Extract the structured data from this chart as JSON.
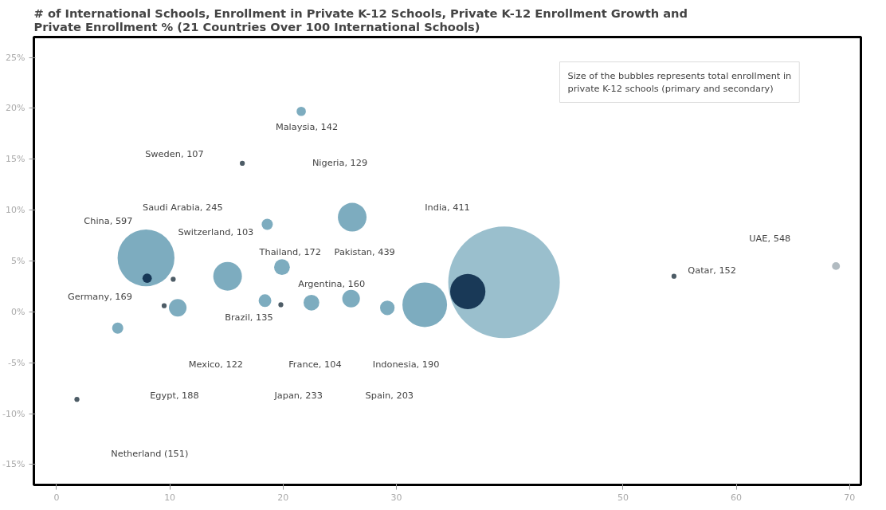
{
  "chart_data": {
    "type": "bubble",
    "title": "# of International Schools, Enrollment in Private K-12 Schools, Private K-12 Enrollment Growth and Private Enrollment % (21 Countries Over 100 International Schools)",
    "legend_title": "Size of the bubbles represents total enrollment in private K-12 schools (primary and secondary)",
    "grid": false,
    "x": [
      21.6,
      16.4,
      26.1,
      18.6,
      7.9,
      15.1,
      19.9,
      8.0,
      10.3,
      39.5,
      36.3,
      18.4,
      19.8,
      22.5,
      26.0,
      29.2,
      32.5,
      10.7,
      9.5,
      5.4,
      1.8,
      54.5,
      68.8
    ],
    "values": [
      19.7,
      14.6,
      9.3,
      8.6,
      5.3,
      3.5,
      4.4,
      3.3,
      3.2,
      2.9,
      2.0,
      1.1,
      0.7,
      0.9,
      1.3,
      0.4,
      0.7,
      0.4,
      0.6,
      -1.6,
      -8.6,
      3.5,
      4.5
    ],
    "sizes": [
      0.007,
      0.002,
      0.066,
      0.01,
      0.26,
      0.066,
      0.02,
      0.007,
      0.002,
      1,
      0.1,
      0.013,
      0.002,
      0.02,
      0.025,
      0.017,
      0.16,
      0.025,
      0.002,
      0.01,
      0.002,
      0.002,
      0.005
    ],
    "colors": [
      "#6fa3b8",
      "#3a4a55",
      "#6fa3b8",
      "#6fa3b8",
      "#6fa3b8",
      "#6fa3b8",
      "#6fa3b8",
      "#0b2a4a",
      "#3a4a55",
      "#8fb8c8",
      "#0b2a4a",
      "#6fa3b8",
      "#3a4a55",
      "#6fa3b8",
      "#6fa3b8",
      "#6fa3b8",
      "#6fa3b8",
      "#6fa3b8",
      "#3a4a55",
      "#6fa3b8",
      "#3a4a55",
      "#3a4a55",
      "#a8b4ba"
    ],
    "xlim": [
      -2,
      71
    ],
    "xticks": [
      0,
      10,
      20,
      30,
      50,
      60,
      70
    ],
    "ylim": [
      -17,
      27
    ],
    "yticks": [
      {
        "value": 25,
        "label": "25%"
      },
      {
        "value": 20,
        "label": "20%"
      },
      {
        "value": 15,
        "label": "15%"
      },
      {
        "value": 10,
        "label": "10%"
      },
      {
        "value": 5,
        "label": "5%"
      },
      {
        "value": 0,
        "label": "0%"
      },
      {
        "value": -5,
        "label": "-5%"
      },
      {
        "value": -10,
        "label": "-10%"
      },
      {
        "value": -15,
        "label": "-15%"
      }
    ],
    "annotations": [
      "Malaysia, 142",
      "Sweden, 107",
      "Nigeria, 129",
      "Saudi Arabia, 245",
      "India, 411",
      "China, 597",
      "UAE, 548",
      "Switzerland, 103",
      "Thailand, 172",
      "Pakistan, 439",
      "Qatar, 152",
      "Argentina, 160",
      "Brazil, 135",
      "Germany, 169",
      "Mexico, 122",
      "France, 104",
      "Indonesia, 190",
      "Egypt, 188",
      "Japan, 233",
      "Spain, 203",
      "Netherland (151)"
    ]
  }
}
